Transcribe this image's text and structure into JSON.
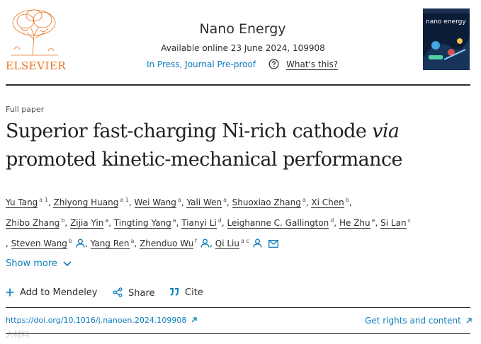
{
  "publisher": {
    "logo_text": "ELSEVIER"
  },
  "journal": {
    "title": "Nano Energy",
    "available": "Available online 23 June 2024, 109908",
    "status": "In Press, Journal Pre-proof",
    "whats_this": "What's this?",
    "cover_title": "nano energy"
  },
  "article": {
    "type": "Full paper",
    "title_part1": "Superior fast-charging Ni-rich cathode ",
    "title_italic": "via",
    "title_part2": "promoted kinetic-mechanical performance"
  },
  "authors": [
    {
      "name": "Yu Tang",
      "sup": "a 1",
      "sep": ","
    },
    {
      "name": "Zhiyong Huang",
      "sup": "a 1",
      "sep": ","
    },
    {
      "name": "Wei Wang",
      "sup": "a",
      "sep": ","
    },
    {
      "name": "Yali Wen",
      "sup": "a",
      "sep": ","
    },
    {
      "name": "Shuoxiao Zhang",
      "sup": "a",
      "sep": ","
    },
    {
      "name": "Xi Chen",
      "sup": "b",
      "sep": ","
    },
    {
      "name": "Zhibo Zhang",
      "sup": "b",
      "sep": ","
    },
    {
      "name": "Zijia Yin",
      "sup": "a",
      "sep": ","
    },
    {
      "name": "Tingting Yang",
      "sup": "a",
      "sep": ","
    },
    {
      "name": "Tianyi Li",
      "sup": "d",
      "sep": ","
    },
    {
      "name": "Leighanne C. Gallington",
      "sup": "d",
      "sep": ","
    },
    {
      "name": "He Zhu",
      "sup": "e",
      "sep": ","
    },
    {
      "name": "Si Lan",
      "sup": "c",
      "sep": ""
    },
    {
      "name": "Steven Wang",
      "sup": "b",
      "sep": ","
    },
    {
      "name": "Yang Ren",
      "sup": "a",
      "sep": ","
    },
    {
      "name": "Zhenduo Wu",
      "sup": "f",
      "sep": ","
    },
    {
      "name": "Qi Liu",
      "sup": "a c",
      "sep": ""
    }
  ],
  "controls": {
    "show_more": "Show more",
    "add_mendeley": "Add to Mendeley",
    "share": "Share",
    "cite": "Cite"
  },
  "links": {
    "doi": "https://doi.org/10.1016/j.nanoen.2024.109908",
    "rights": "Get rights and content"
  },
  "watermark": "大材料",
  "colors": {
    "link": "#0c7dbb",
    "elsevier_orange": "#e9711c",
    "text": "#2e2e2e"
  }
}
